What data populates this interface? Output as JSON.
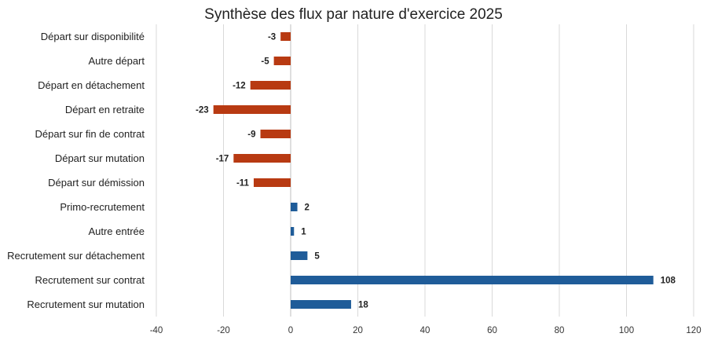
{
  "chart_data": {
    "type": "bar",
    "orientation": "horizontal",
    "title": "Synthèse des flux par nature d'exercice 2025",
    "categories": [
      "Départ sur disponibilité",
      "Autre départ",
      "Départ en détachement",
      "Départ en retraite",
      "Départ sur fin de contrat",
      "Départ sur mutation",
      "Départ sur démission",
      "Primo-recrutement",
      "Autre entrée",
      "Recrutement sur détachement",
      "Recrutement sur contrat",
      "Recrutement sur mutation"
    ],
    "values": [
      -3,
      -5,
      -12,
      -23,
      -9,
      -17,
      -11,
      2,
      1,
      5,
      108,
      18
    ],
    "xlim": [
      -40,
      120
    ],
    "x_ticks": [
      -40,
      -20,
      0,
      20,
      40,
      60,
      80,
      100,
      120
    ],
    "grid": true,
    "colors": {
      "negative": "#B83A12",
      "positive": "#1F5C99",
      "grid": "#D9D9D9",
      "zero_axis": "#BFBFBF"
    }
  }
}
